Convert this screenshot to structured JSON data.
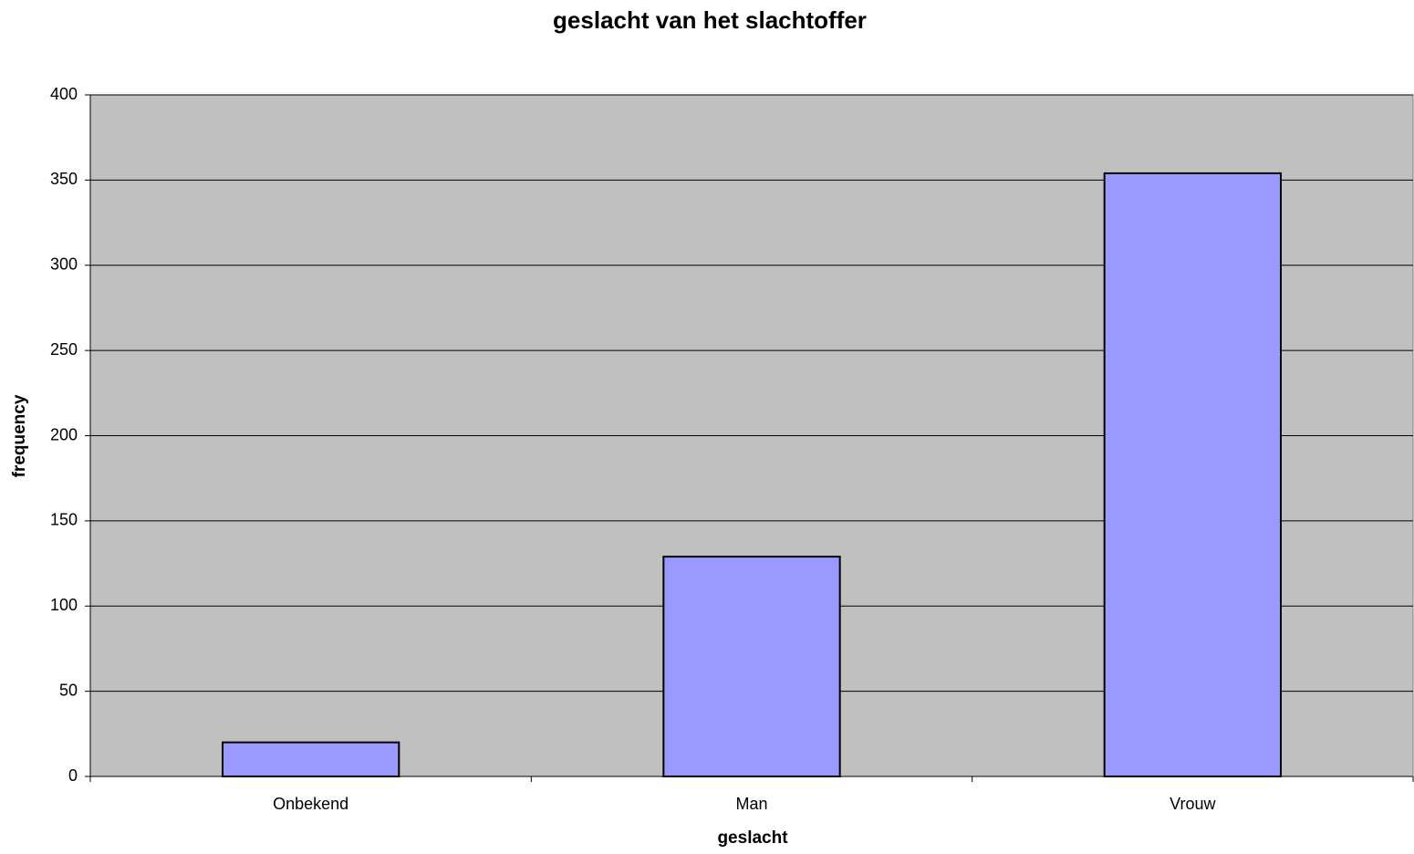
{
  "chart_data": {
    "type": "bar",
    "title": "geslacht van het slachtoffer",
    "x_label": "geslacht",
    "y_label": "frequency",
    "categories": [
      "Onbekend",
      "Man",
      "Vrouw"
    ],
    "values": [
      20,
      129,
      354
    ],
    "color": "#9999ff",
    "ylim": [
      0,
      400
    ],
    "yticks": [
      0,
      50,
      100,
      150,
      200,
      250,
      300,
      350,
      400
    ],
    "grid": true
  }
}
